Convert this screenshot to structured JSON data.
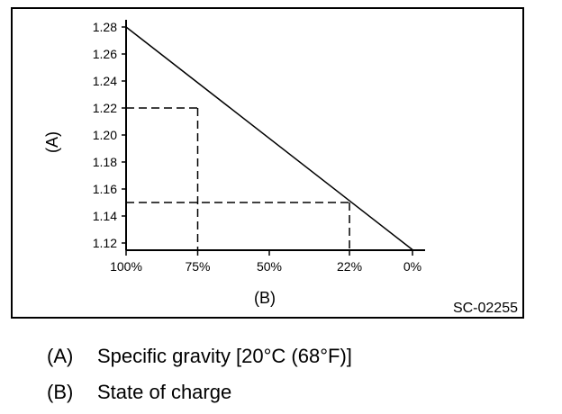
{
  "chart_data": {
    "type": "line",
    "title": "",
    "xlabel": "(B)",
    "ylabel": "(A)",
    "figure_code": "SC-02255",
    "x_reversed": true,
    "xlim": [
      0,
      100
    ],
    "ylim": [
      1.12,
      1.28
    ],
    "yticks": [
      1.28,
      1.26,
      1.24,
      1.22,
      1.2,
      1.18,
      1.16,
      1.14,
      1.12
    ],
    "ytick_labels": [
      "1.28",
      "1.26",
      "1.24",
      "1.22",
      "1.20",
      "1.18",
      "1.16",
      "1.14",
      "1.12"
    ],
    "xticks": [
      100,
      75,
      50,
      22,
      0
    ],
    "xtick_labels": [
      "100%",
      "75%",
      "50%",
      "22%",
      "0%"
    ],
    "series": [
      {
        "x": [
          100,
          0
        ],
        "y": [
          1.28,
          1.115
        ]
      }
    ],
    "reference_points": [
      {
        "x": 75,
        "y": 1.22
      },
      {
        "x": 22,
        "y": 1.15
      }
    ],
    "grid": false
  },
  "legend": {
    "items": [
      {
        "key": "(A)",
        "text": "Specific gravity [20°C (68°F)]"
      },
      {
        "key": "(B)",
        "text": "State of charge"
      }
    ]
  }
}
